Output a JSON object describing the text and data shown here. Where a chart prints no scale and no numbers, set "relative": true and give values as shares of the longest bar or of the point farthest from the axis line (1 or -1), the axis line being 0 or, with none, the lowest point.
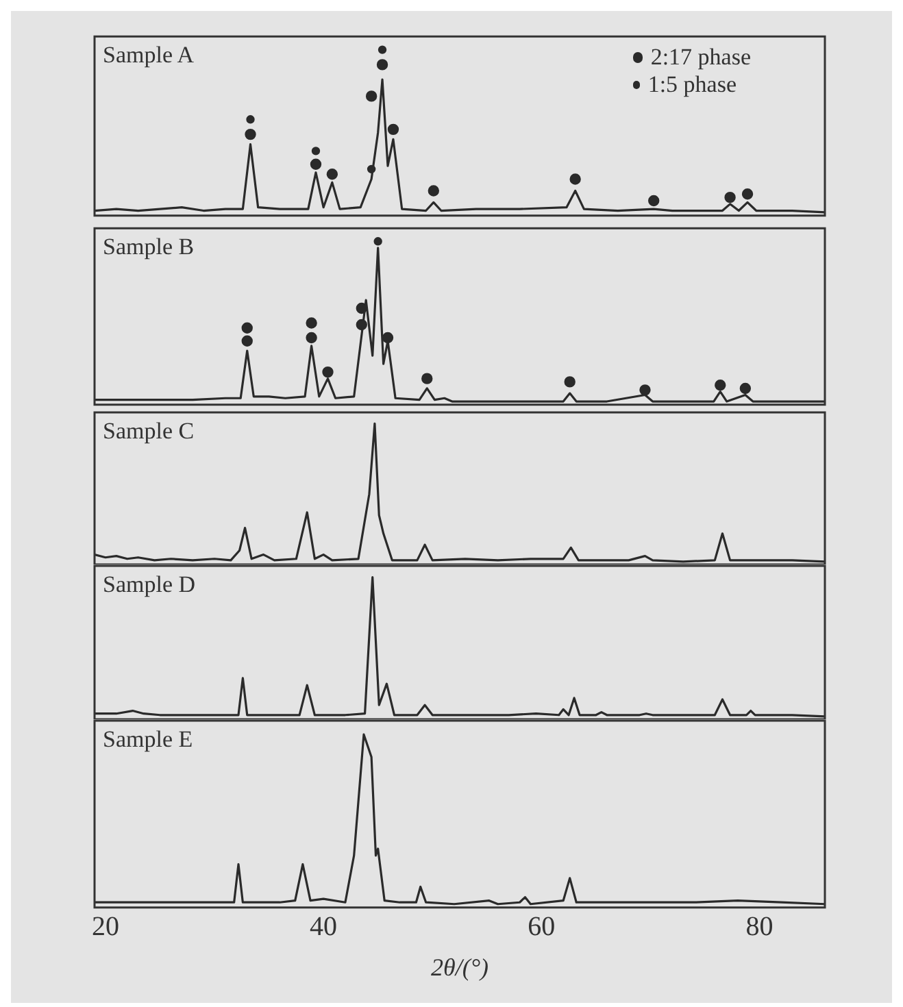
{
  "chart_data": [
    {
      "type": "line",
      "title": "Sample A",
      "relative": true,
      "xlim": [
        19,
        86
      ],
      "xticks": [
        20,
        40,
        60,
        80
      ],
      "tick_labels": false,
      "grid": false,
      "legend": "top right",
      "series": [
        {
          "type": "line",
          "color": "#2a2a2a",
          "marker": "none",
          "x": [
            19,
            21,
            23,
            25,
            27,
            29,
            31,
            32.6,
            33.3,
            34,
            36,
            38.6,
            39.3,
            40,
            40.8,
            41.5,
            43.4,
            44.4,
            45,
            45.4,
            45.9,
            46.4,
            47.2,
            49.4,
            50.1,
            50.8,
            54,
            58,
            62.3,
            63.1,
            63.9,
            67,
            70.3,
            72,
            76.6,
            77.3,
            78.1,
            78.9,
            79.7,
            83,
            86
          ],
          "values": [
            0.03,
            0.04,
            0.03,
            0.04,
            0.05,
            0.03,
            0.04,
            0.04,
            0.43,
            0.05,
            0.04,
            0.04,
            0.26,
            0.05,
            0.2,
            0.04,
            0.05,
            0.22,
            0.5,
            0.82,
            0.3,
            0.46,
            0.04,
            0.03,
            0.08,
            0.03,
            0.04,
            0.04,
            0.05,
            0.15,
            0.04,
            0.03,
            0.04,
            0.03,
            0.03,
            0.07,
            0.03,
            0.08,
            0.03,
            0.03,
            0.02
          ]
        },
        {
          "type": "scatter",
          "name": "2:17 phase",
          "color": "#2a2a2a",
          "marker": "circle",
          "x": [
            33.3,
            39.3,
            40.8,
            44.4,
            45.4,
            46.4,
            50.1,
            63.1,
            70.3,
            77.3,
            78.9
          ],
          "values": [
            0.49,
            0.31,
            0.25,
            0.72,
            0.91,
            0.52,
            0.15,
            0.22,
            0.09,
            0.11,
            0.13
          ]
        },
        {
          "type": "scatter",
          "name": "1:5 phase",
          "color": "#2a2a2a",
          "marker": "circle",
          "x": [
            33.3,
            39.3,
            44.4,
            45.4
          ],
          "values": [
            0.58,
            0.39,
            0.28,
            1
          ]
        }
      ]
    },
    {
      "type": "line",
      "title": "Sample B",
      "relative": true,
      "xlim": [
        19,
        86
      ],
      "xticks": [
        20,
        40,
        60,
        80
      ],
      "tick_labels": false,
      "grid": false,
      "series": [
        {
          "type": "line",
          "color": "#2a2a2a",
          "marker": "none",
          "x": [
            19,
            22,
            25,
            28,
            31,
            32.4,
            33.0,
            33.6,
            35,
            36.5,
            38.3,
            38.9,
            39.6,
            40.4,
            41.1,
            42.8,
            43.9,
            44.5,
            45.0,
            45.5,
            45.9,
            46.6,
            48.8,
            49.5,
            50.2,
            51.1,
            51.8,
            55,
            59,
            62,
            62.6,
            63.2,
            66,
            69.5,
            70.2,
            73,
            75.8,
            76.4,
            77,
            78.7,
            79.4,
            83,
            86
          ],
          "values": [
            0.03,
            0.03,
            0.03,
            0.03,
            0.04,
            0.04,
            0.33,
            0.05,
            0.05,
            0.04,
            0.05,
            0.36,
            0.05,
            0.16,
            0.04,
            0.05,
            0.64,
            0.3,
            0.96,
            0.25,
            0.39,
            0.04,
            0.03,
            0.1,
            0.03,
            0.04,
            0.02,
            0.02,
            0.02,
            0.02,
            0.07,
            0.02,
            0.02,
            0.06,
            0.02,
            0.02,
            0.02,
            0.08,
            0.02,
            0.06,
            0.02,
            0.02,
            0.02
          ]
        },
        {
          "type": "scatter",
          "color": "#2a2a2a",
          "marker": "circle",
          "x": [
            33.0,
            33.0,
            38.9,
            38.9,
            40.4,
            43.5,
            43.5,
            45.9,
            49.5,
            62.6,
            69.5,
            76.4,
            78.7
          ],
          "values": [
            0.47,
            0.39,
            0.5,
            0.41,
            0.2,
            0.59,
            0.49,
            0.41,
            0.16,
            0.14,
            0.09,
            0.12,
            0.1
          ]
        },
        {
          "type": "scatter",
          "color": "#2a2a2a",
          "marker": "circle",
          "x": [
            45.0
          ],
          "values": [
            1
          ]
        }
      ]
    },
    {
      "type": "line",
      "title": "Sample C",
      "relative": true,
      "xlim": [
        19,
        86
      ],
      "xticks": [
        20,
        40,
        60,
        80
      ],
      "tick_labels": false,
      "grid": false,
      "series": [
        {
          "type": "line",
          "color": "#2a2a2a",
          "marker": "none",
          "x": [
            19,
            20,
            21,
            22,
            23,
            24.5,
            26,
            28,
            30,
            31.5,
            32.3,
            32.8,
            33.4,
            34.5,
            35.5,
            37.5,
            38.5,
            39.2,
            40.0,
            40.8,
            43.2,
            44.2,
            44.7,
            45.1,
            45.5,
            46.3,
            48.6,
            49.3,
            50,
            53,
            56,
            59,
            62,
            62.7,
            63.4,
            66,
            68,
            69.5,
            70.2,
            73,
            75.9,
            76.6,
            77.3,
            80,
            83,
            86
          ],
          "values": [
            0.07,
            0.05,
            0.06,
            0.04,
            0.05,
            0.03,
            0.04,
            0.03,
            0.04,
            0.03,
            0.1,
            0.26,
            0.04,
            0.07,
            0.03,
            0.04,
            0.37,
            0.04,
            0.07,
            0.03,
            0.04,
            0.5,
            1,
            0.35,
            0.22,
            0.03,
            0.03,
            0.14,
            0.03,
            0.04,
            0.03,
            0.04,
            0.04,
            0.12,
            0.03,
            0.03,
            0.03,
            0.06,
            0.03,
            0.02,
            0.03,
            0.22,
            0.03,
            0.03,
            0.03,
            0.02
          ]
        }
      ]
    },
    {
      "type": "line",
      "title": "Sample D",
      "relative": true,
      "xlim": [
        19,
        86
      ],
      "xticks": [
        20,
        40,
        60,
        80
      ],
      "tick_labels": false,
      "grid": false,
      "series": [
        {
          "type": "line",
          "color": "#2a2a2a",
          "marker": "none",
          "x": [
            19,
            21,
            22.5,
            23.5,
            25,
            28,
            31,
            32.2,
            32.6,
            33,
            35,
            37.8,
            38.5,
            39.2,
            42,
            43.8,
            44.5,
            45.1,
            45.8,
            46.5,
            48.6,
            49.3,
            50,
            54,
            57,
            59.5,
            61.6,
            62.0,
            62.5,
            63.0,
            63.5,
            65,
            65.5,
            66,
            69,
            69.6,
            70.2,
            73,
            75.9,
            76.6,
            77.3,
            78.8,
            79.2,
            79.6,
            83,
            86
          ],
          "values": [
            0.04,
            0.04,
            0.06,
            0.04,
            0.03,
            0.03,
            0.03,
            0.03,
            0.29,
            0.03,
            0.03,
            0.03,
            0.24,
            0.03,
            0.03,
            0.04,
            1,
            0.1,
            0.25,
            0.03,
            0.03,
            0.1,
            0.03,
            0.03,
            0.03,
            0.04,
            0.03,
            0.07,
            0.03,
            0.15,
            0.03,
            0.03,
            0.05,
            0.03,
            0.03,
            0.04,
            0.03,
            0.03,
            0.03,
            0.14,
            0.03,
            0.03,
            0.06,
            0.03,
            0.03,
            0.02
          ]
        }
      ]
    },
    {
      "type": "line",
      "title": "Sample E",
      "relative": true,
      "xlabel": "2θ/(°)",
      "xlim": [
        19,
        86
      ],
      "xticks": [
        20,
        40,
        60,
        80
      ],
      "tick_labels": "x",
      "grid": false,
      "series": [
        {
          "type": "line",
          "color": "#2a2a2a",
          "marker": "none",
          "x": [
            19,
            22,
            25,
            28,
            31,
            31.8,
            32.2,
            32.6,
            34,
            36,
            37.4,
            38.1,
            38.8,
            40,
            42,
            42.8,
            43.7,
            44.4,
            44.8,
            45.0,
            45.6,
            47,
            48.5,
            48.9,
            49.4,
            52,
            55.2,
            56,
            58,
            58.5,
            59,
            62,
            62.6,
            63.2,
            66,
            70,
            74,
            78,
            82,
            86
          ],
          "values": [
            0.03,
            0.03,
            0.03,
            0.03,
            0.03,
            0.03,
            0.25,
            0.03,
            0.03,
            0.03,
            0.04,
            0.25,
            0.04,
            0.05,
            0.03,
            0.3,
            1,
            0.87,
            0.3,
            0.34,
            0.04,
            0.03,
            0.03,
            0.12,
            0.03,
            0.02,
            0.04,
            0.02,
            0.03,
            0.06,
            0.02,
            0.04,
            0.17,
            0.03,
            0.03,
            0.03,
            0.03,
            0.04,
            0.03,
            0.02
          ]
        }
      ]
    }
  ]
}
